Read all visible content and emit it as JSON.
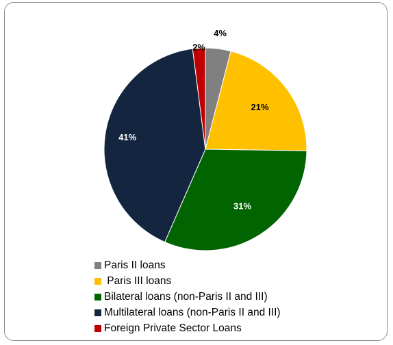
{
  "chart_data": {
    "type": "pie",
    "slices": [
      {
        "label": "Paris II loans",
        "value": 4,
        "display": "4%",
        "color": "#808080",
        "label_color": "#000000"
      },
      {
        "label": " Paris III loans",
        "value": 21,
        "display": "21%",
        "color": "#FFC000",
        "label_color": "#000000"
      },
      {
        "label": "Bilateral loans (non-Paris II and III)",
        "value": 31,
        "display": "31%",
        "color": "#006400",
        "label_color": "#ffffff"
      },
      {
        "label": "Multilateral loans (non-Paris II and III)",
        "value": 41,
        "display": "41%",
        "color": "#13253F",
        "label_color": "#ffffff"
      },
      {
        "label": "Foreign Private Sector Loans",
        "value": 2,
        "display": "2%",
        "color": "#C00000",
        "label_color": "#000000"
      }
    ],
    "start_angle_deg": 0,
    "direction": "clockwise",
    "legend_position": "bottom-left"
  }
}
